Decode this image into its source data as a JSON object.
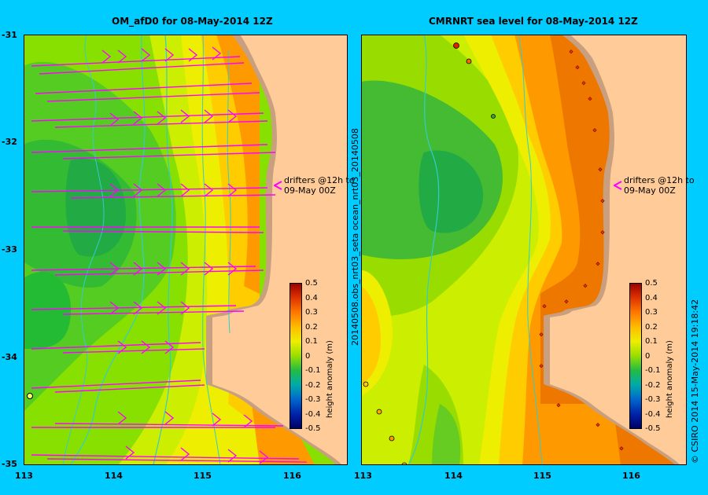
{
  "left_panel": {
    "title": "OM_afD0 for 08-May-2014 12Z",
    "drifter_label_line1": "drifters @12h to",
    "drifter_label_line2": "09-May 00Z"
  },
  "right_panel": {
    "title": "CMRNRT sea level  for 08-May-2014 12Z",
    "side_label": "20140508.obs_nrt03_seta     ocean_nrt03_20140508",
    "drifter_label_line1": "drifters @12h to",
    "drifter_label_line2": "09-May 00Z"
  },
  "y_ticks": [
    "-31",
    "-32",
    "-33",
    "-34",
    "-35"
  ],
  "left_x_ticks": [
    "113",
    "114",
    "115",
    "116"
  ],
  "right_x_ticks": [
    "113",
    "114",
    "115",
    "116"
  ],
  "colorbar": {
    "title": "height anomaly (m)",
    "labels": [
      "0.5",
      "0.4",
      "0.3",
      "0.2",
      "0.1",
      "0",
      "-0.1",
      "-0.2",
      "-0.3",
      "-0.4",
      "-0.5"
    ]
  },
  "footer_credit": "© CSIRO 2014   15-May-2014 19:18:42",
  "colors": {
    "background": "#00ccff",
    "land": "#ffcc99",
    "coast_shelf": "#c8a080",
    "drifter_arrow": "#ff00ff",
    "isobath": "#33cccc"
  }
}
